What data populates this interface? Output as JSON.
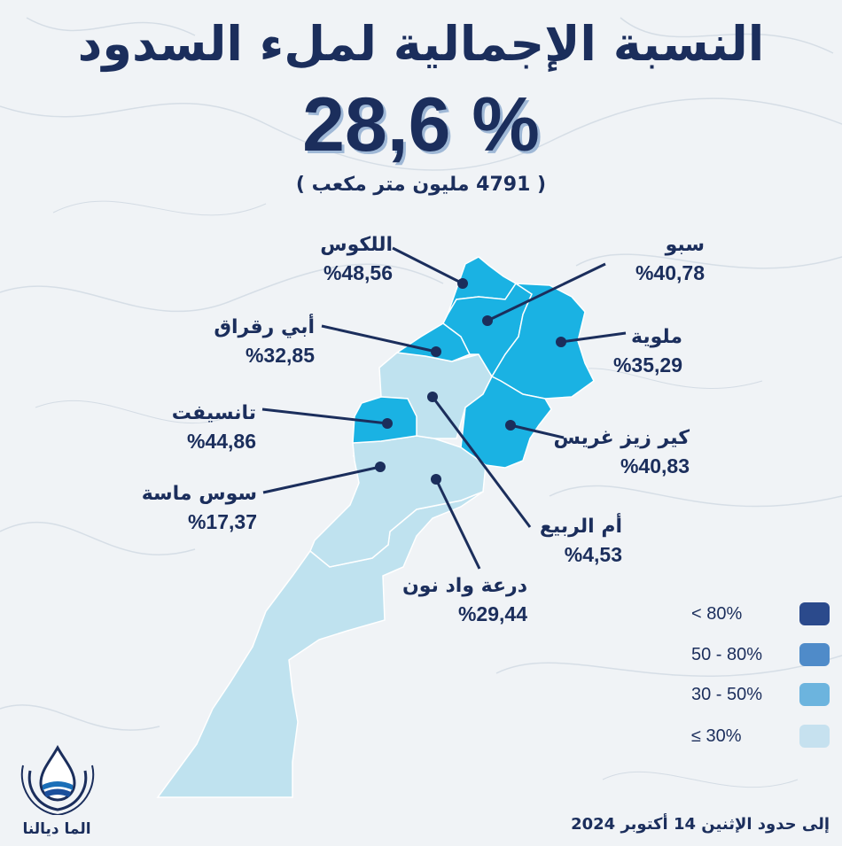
{
  "header": {
    "title": "النسبة الإجمالية لملء السدود",
    "total_rate": "28,6 %",
    "total_volume": "( 4791 مليون متر مكعب )"
  },
  "basins": [
    {
      "name": "اللكوس",
      "rate": "%48,56",
      "value": 48.56
    },
    {
      "name": "سبو",
      "rate": "%40,78",
      "value": 40.78
    },
    {
      "name": "أبي رقراق",
      "rate": "%32,85",
      "value": 32.85
    },
    {
      "name": "ملوية",
      "rate": "%35,29",
      "value": 35.29
    },
    {
      "name": "تانسيفت",
      "rate": "%44,86",
      "value": 44.86
    },
    {
      "name": "كير زيز غريس",
      "rate": "%40,83",
      "value": 40.83
    },
    {
      "name": "سوس ماسة",
      "rate": "%17,37",
      "value": 17.37
    },
    {
      "name": "أم الربيع",
      "rate": "%4,53",
      "value": 4.53
    },
    {
      "name": "درعة واد نون",
      "rate": "%29,44",
      "value": 29.44
    }
  ],
  "legend": [
    {
      "label": "< 80%",
      "color": "#2b4a8c"
    },
    {
      "label": "50 - 80%",
      "color": "#4f8bc9"
    },
    {
      "label": "30 - 50%",
      "color": "#6cb4de"
    },
    {
      "label": "≤ 30%",
      "color": "#c6e1ef"
    }
  ],
  "colors": {
    "high": "#1ab2e3",
    "low": "#bfe2ef",
    "text": "#1b2e5c",
    "leader": "#1b2e5c"
  },
  "footer": {
    "date": "إلى حدود الإثنين 14 أكتوبر 2024",
    "brand": "الما ديالنا",
    "logo_icon": "water-drop-hands-icon"
  }
}
